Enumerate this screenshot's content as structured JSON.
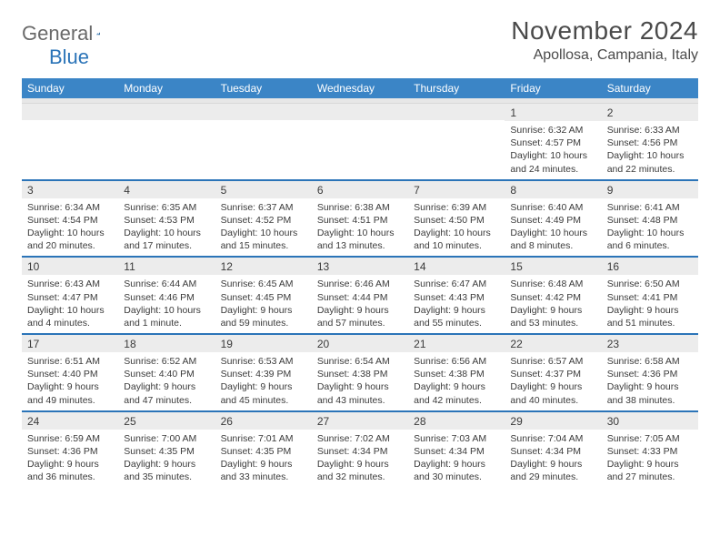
{
  "logo": {
    "word1": "General",
    "word2": "Blue"
  },
  "title": "November 2024",
  "location": "Apollosa, Campania, Italy",
  "colors": {
    "header_bg": "#3b85c6",
    "week_rule": "#2b74b8",
    "daynum_bg": "#ececec",
    "text": "#3a3a3a",
    "logo_gray": "#6a6a6a",
    "logo_blue": "#2b74b8"
  },
  "weekdays": [
    "Sunday",
    "Monday",
    "Tuesday",
    "Wednesday",
    "Thursday",
    "Friday",
    "Saturday"
  ],
  "weeks": [
    [
      null,
      null,
      null,
      null,
      null,
      {
        "n": "1",
        "sr": "Sunrise: 6:32 AM",
        "ss": "Sunset: 4:57 PM",
        "d1": "Daylight: 10 hours",
        "d2": "and 24 minutes."
      },
      {
        "n": "2",
        "sr": "Sunrise: 6:33 AM",
        "ss": "Sunset: 4:56 PM",
        "d1": "Daylight: 10 hours",
        "d2": "and 22 minutes."
      }
    ],
    [
      {
        "n": "3",
        "sr": "Sunrise: 6:34 AM",
        "ss": "Sunset: 4:54 PM",
        "d1": "Daylight: 10 hours",
        "d2": "and 20 minutes."
      },
      {
        "n": "4",
        "sr": "Sunrise: 6:35 AM",
        "ss": "Sunset: 4:53 PM",
        "d1": "Daylight: 10 hours",
        "d2": "and 17 minutes."
      },
      {
        "n": "5",
        "sr": "Sunrise: 6:37 AM",
        "ss": "Sunset: 4:52 PM",
        "d1": "Daylight: 10 hours",
        "d2": "and 15 minutes."
      },
      {
        "n": "6",
        "sr": "Sunrise: 6:38 AM",
        "ss": "Sunset: 4:51 PM",
        "d1": "Daylight: 10 hours",
        "d2": "and 13 minutes."
      },
      {
        "n": "7",
        "sr": "Sunrise: 6:39 AM",
        "ss": "Sunset: 4:50 PM",
        "d1": "Daylight: 10 hours",
        "d2": "and 10 minutes."
      },
      {
        "n": "8",
        "sr": "Sunrise: 6:40 AM",
        "ss": "Sunset: 4:49 PM",
        "d1": "Daylight: 10 hours",
        "d2": "and 8 minutes."
      },
      {
        "n": "9",
        "sr": "Sunrise: 6:41 AM",
        "ss": "Sunset: 4:48 PM",
        "d1": "Daylight: 10 hours",
        "d2": "and 6 minutes."
      }
    ],
    [
      {
        "n": "10",
        "sr": "Sunrise: 6:43 AM",
        "ss": "Sunset: 4:47 PM",
        "d1": "Daylight: 10 hours",
        "d2": "and 4 minutes."
      },
      {
        "n": "11",
        "sr": "Sunrise: 6:44 AM",
        "ss": "Sunset: 4:46 PM",
        "d1": "Daylight: 10 hours",
        "d2": "and 1 minute."
      },
      {
        "n": "12",
        "sr": "Sunrise: 6:45 AM",
        "ss": "Sunset: 4:45 PM",
        "d1": "Daylight: 9 hours",
        "d2": "and 59 minutes."
      },
      {
        "n": "13",
        "sr": "Sunrise: 6:46 AM",
        "ss": "Sunset: 4:44 PM",
        "d1": "Daylight: 9 hours",
        "d2": "and 57 minutes."
      },
      {
        "n": "14",
        "sr": "Sunrise: 6:47 AM",
        "ss": "Sunset: 4:43 PM",
        "d1": "Daylight: 9 hours",
        "d2": "and 55 minutes."
      },
      {
        "n": "15",
        "sr": "Sunrise: 6:48 AM",
        "ss": "Sunset: 4:42 PM",
        "d1": "Daylight: 9 hours",
        "d2": "and 53 minutes."
      },
      {
        "n": "16",
        "sr": "Sunrise: 6:50 AM",
        "ss": "Sunset: 4:41 PM",
        "d1": "Daylight: 9 hours",
        "d2": "and 51 minutes."
      }
    ],
    [
      {
        "n": "17",
        "sr": "Sunrise: 6:51 AM",
        "ss": "Sunset: 4:40 PM",
        "d1": "Daylight: 9 hours",
        "d2": "and 49 minutes."
      },
      {
        "n": "18",
        "sr": "Sunrise: 6:52 AM",
        "ss": "Sunset: 4:40 PM",
        "d1": "Daylight: 9 hours",
        "d2": "and 47 minutes."
      },
      {
        "n": "19",
        "sr": "Sunrise: 6:53 AM",
        "ss": "Sunset: 4:39 PM",
        "d1": "Daylight: 9 hours",
        "d2": "and 45 minutes."
      },
      {
        "n": "20",
        "sr": "Sunrise: 6:54 AM",
        "ss": "Sunset: 4:38 PM",
        "d1": "Daylight: 9 hours",
        "d2": "and 43 minutes."
      },
      {
        "n": "21",
        "sr": "Sunrise: 6:56 AM",
        "ss": "Sunset: 4:38 PM",
        "d1": "Daylight: 9 hours",
        "d2": "and 42 minutes."
      },
      {
        "n": "22",
        "sr": "Sunrise: 6:57 AM",
        "ss": "Sunset: 4:37 PM",
        "d1": "Daylight: 9 hours",
        "d2": "and 40 minutes."
      },
      {
        "n": "23",
        "sr": "Sunrise: 6:58 AM",
        "ss": "Sunset: 4:36 PM",
        "d1": "Daylight: 9 hours",
        "d2": "and 38 minutes."
      }
    ],
    [
      {
        "n": "24",
        "sr": "Sunrise: 6:59 AM",
        "ss": "Sunset: 4:36 PM",
        "d1": "Daylight: 9 hours",
        "d2": "and 36 minutes."
      },
      {
        "n": "25",
        "sr": "Sunrise: 7:00 AM",
        "ss": "Sunset: 4:35 PM",
        "d1": "Daylight: 9 hours",
        "d2": "and 35 minutes."
      },
      {
        "n": "26",
        "sr": "Sunrise: 7:01 AM",
        "ss": "Sunset: 4:35 PM",
        "d1": "Daylight: 9 hours",
        "d2": "and 33 minutes."
      },
      {
        "n": "27",
        "sr": "Sunrise: 7:02 AM",
        "ss": "Sunset: 4:34 PM",
        "d1": "Daylight: 9 hours",
        "d2": "and 32 minutes."
      },
      {
        "n": "28",
        "sr": "Sunrise: 7:03 AM",
        "ss": "Sunset: 4:34 PM",
        "d1": "Daylight: 9 hours",
        "d2": "and 30 minutes."
      },
      {
        "n": "29",
        "sr": "Sunrise: 7:04 AM",
        "ss": "Sunset: 4:34 PM",
        "d1": "Daylight: 9 hours",
        "d2": "and 29 minutes."
      },
      {
        "n": "30",
        "sr": "Sunrise: 7:05 AM",
        "ss": "Sunset: 4:33 PM",
        "d1": "Daylight: 9 hours",
        "d2": "and 27 minutes."
      }
    ]
  ]
}
